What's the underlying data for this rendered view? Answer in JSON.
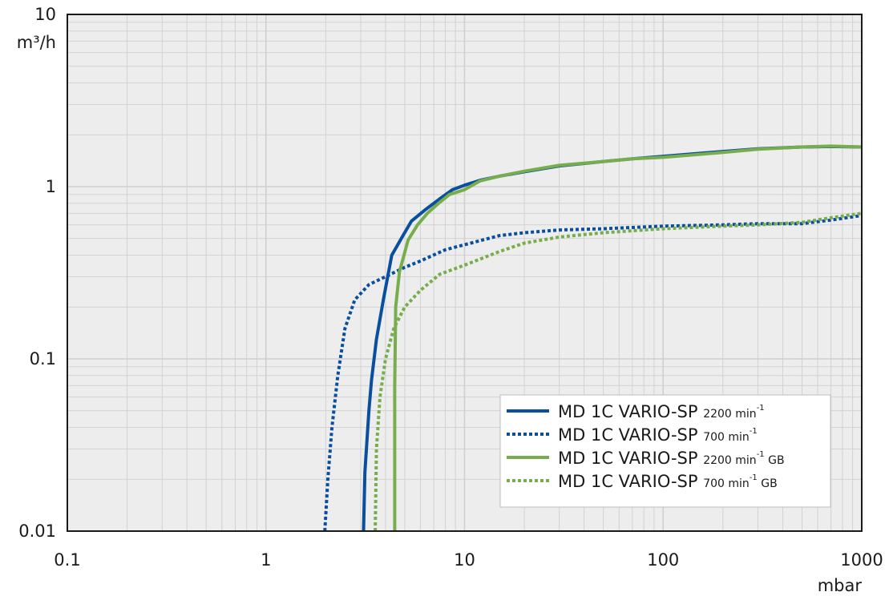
{
  "chart_data": {
    "type": "line",
    "title": "",
    "x_scale": "log",
    "y_scale": "log",
    "xlim": [
      0.1,
      1000
    ],
    "ylim": [
      0.01,
      10
    ],
    "grid": true,
    "x_ticks": [
      "0.1",
      "1",
      "10",
      "100",
      "1000"
    ],
    "y_ticks": [
      "0.01",
      "0.1",
      "1",
      "10"
    ],
    "xlabel": "mbar",
    "ylabel": "m³/h",
    "legend_position": "bottom-right",
    "series": [
      {
        "name": "MD 1C VARIO-SP",
        "speed": "2200",
        "unit": "min",
        "unit_exp": "-1",
        "suffix": "",
        "color": "#0a4f9e",
        "style": "solid",
        "points": [
          [
            3.1,
            0.01
          ],
          [
            3.15,
            0.022
          ],
          [
            3.3,
            0.05
          ],
          [
            3.4,
            0.075
          ],
          [
            3.6,
            0.13
          ],
          [
            3.9,
            0.22
          ],
          [
            4.3,
            0.4
          ],
          [
            4.9,
            0.52
          ],
          [
            5.4,
            0.63
          ],
          [
            6.3,
            0.73
          ],
          [
            7.4,
            0.84
          ],
          [
            8.7,
            0.96
          ],
          [
            10,
            1.02
          ],
          [
            12,
            1.09
          ],
          [
            15,
            1.15
          ],
          [
            20,
            1.22
          ],
          [
            30,
            1.32
          ],
          [
            50,
            1.4
          ],
          [
            70,
            1.45
          ],
          [
            100,
            1.5
          ],
          [
            200,
            1.6
          ],
          [
            300,
            1.66
          ],
          [
            500,
            1.7
          ],
          [
            700,
            1.71
          ],
          [
            1000,
            1.7
          ]
        ]
      },
      {
        "name": "MD 1C VARIO-SP",
        "speed": "700",
        "unit": "min",
        "unit_exp": "-1",
        "suffix": "",
        "color": "#0a4f9e",
        "style": "dotted",
        "points": [
          [
            1.98,
            0.01
          ],
          [
            2.05,
            0.02
          ],
          [
            2.15,
            0.04
          ],
          [
            2.3,
            0.08
          ],
          [
            2.5,
            0.15
          ],
          [
            2.8,
            0.22
          ],
          [
            3.3,
            0.27
          ],
          [
            4,
            0.3
          ],
          [
            5,
            0.34
          ],
          [
            6,
            0.37
          ],
          [
            8,
            0.43
          ],
          [
            10,
            0.46
          ],
          [
            15,
            0.52
          ],
          [
            20,
            0.54
          ],
          [
            30,
            0.56
          ],
          [
            50,
            0.57
          ],
          [
            100,
            0.59
          ],
          [
            200,
            0.6
          ],
          [
            300,
            0.61
          ],
          [
            500,
            0.61
          ],
          [
            700,
            0.64
          ],
          [
            1000,
            0.68
          ]
        ]
      },
      {
        "name": "MD 1C VARIO-SP",
        "speed": "2200",
        "unit": "min",
        "unit_exp": "-1",
        "suffix": "GB",
        "color": "#77ad4d",
        "style": "solid",
        "points": [
          [
            4.45,
            0.01
          ],
          [
            4.45,
            0.07
          ],
          [
            4.5,
            0.2
          ],
          [
            4.7,
            0.32
          ],
          [
            5.2,
            0.49
          ],
          [
            5.8,
            0.6
          ],
          [
            6.5,
            0.7
          ],
          [
            7.4,
            0.8
          ],
          [
            8.4,
            0.9
          ],
          [
            10,
            0.96
          ],
          [
            12,
            1.08
          ],
          [
            15,
            1.15
          ],
          [
            20,
            1.23
          ],
          [
            30,
            1.33
          ],
          [
            50,
            1.4
          ],
          [
            70,
            1.45
          ],
          [
            100,
            1.48
          ],
          [
            200,
            1.58
          ],
          [
            300,
            1.65
          ],
          [
            500,
            1.7
          ],
          [
            700,
            1.72
          ],
          [
            1000,
            1.7
          ]
        ]
      },
      {
        "name": "MD 1C VARIO-SP",
        "speed": "700",
        "unit": "min",
        "unit_exp": "-1",
        "suffix": "GB",
        "color": "#77ad4d",
        "style": "dotted",
        "points": [
          [
            3.55,
            0.01
          ],
          [
            3.6,
            0.03
          ],
          [
            3.75,
            0.06
          ],
          [
            4,
            0.1
          ],
          [
            4.4,
            0.15
          ],
          [
            5,
            0.2
          ],
          [
            6,
            0.25
          ],
          [
            7.5,
            0.31
          ],
          [
            10,
            0.35
          ],
          [
            15,
            0.42
          ],
          [
            20,
            0.47
          ],
          [
            30,
            0.51
          ],
          [
            50,
            0.54
          ],
          [
            100,
            0.57
          ],
          [
            200,
            0.59
          ],
          [
            300,
            0.6
          ],
          [
            500,
            0.62
          ],
          [
            700,
            0.66
          ],
          [
            1000,
            0.7
          ]
        ]
      }
    ]
  },
  "colors": {
    "plot_background": "#ededed",
    "grid": "#cfcfcf",
    "axis": "#1a1a1a",
    "blue": "#0a4f9e",
    "green": "#77ad4d"
  }
}
